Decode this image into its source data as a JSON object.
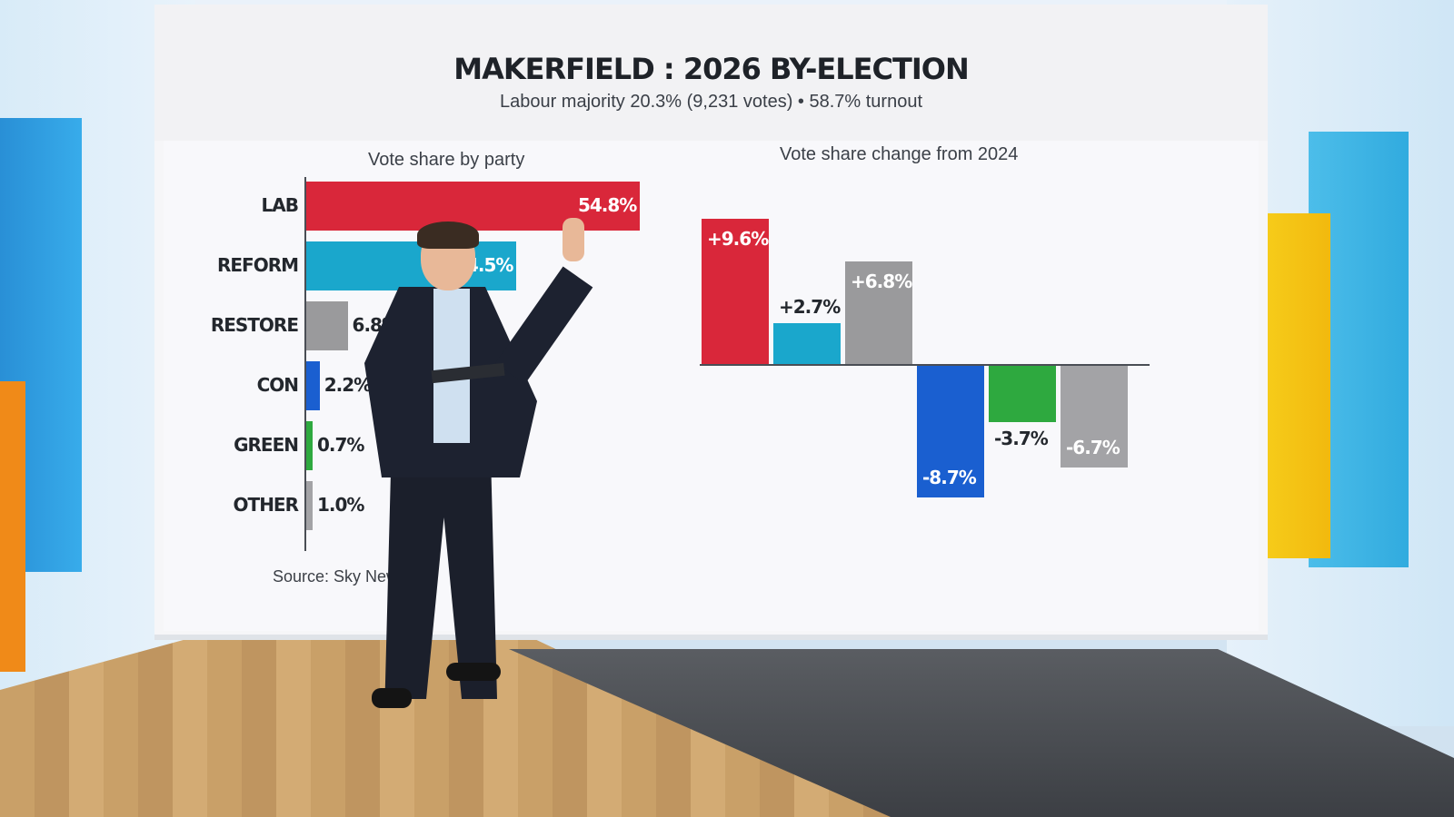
{
  "title": "MAKERFIELD : 2026 BY-ELECTION",
  "subtitle": "Labour majority 20.3% (9,231 votes) • 58.7% turnout",
  "source": "Source: Sky News",
  "colors": {
    "LAB": "#d9273a",
    "REFORM": "#1aa7cc",
    "RESTORE": "#9a9a9c",
    "CON": "#1a5fd0",
    "GREEN": "#2ea93f",
    "OTHER": "#a3a3a6"
  },
  "chart_data": [
    {
      "type": "bar",
      "orientation": "horizontal",
      "title": "Vote share by party",
      "categories": [
        "LAB",
        "REFORM",
        "RESTORE",
        "CON",
        "GREEN",
        "OTHER"
      ],
      "values": [
        54.8,
        34.5,
        6.8,
        2.2,
        0.7,
        1.0
      ],
      "value_labels": [
        "54.8%",
        "34.5%",
        "6.8%",
        "2.2%",
        "0.7%",
        "1.0%"
      ],
      "xlim": [
        0,
        56
      ],
      "grid": false,
      "legend": "none"
    },
    {
      "type": "bar",
      "orientation": "vertical",
      "title": "Vote share change from 2024",
      "categories": [
        "LAB",
        "REFORM",
        "RESTORE",
        "CON",
        "GREEN",
        "OTHER"
      ],
      "values": [
        9.6,
        2.7,
        6.8,
        -8.7,
        -3.7,
        -6.7
      ],
      "value_labels": [
        "+9.6%",
        "+2.7%",
        "+6.8%",
        "-8.7%",
        "-3.7%",
        "-6.7%"
      ],
      "ylim": [
        -9,
        10
      ],
      "grid": false,
      "legend": "none"
    }
  ]
}
